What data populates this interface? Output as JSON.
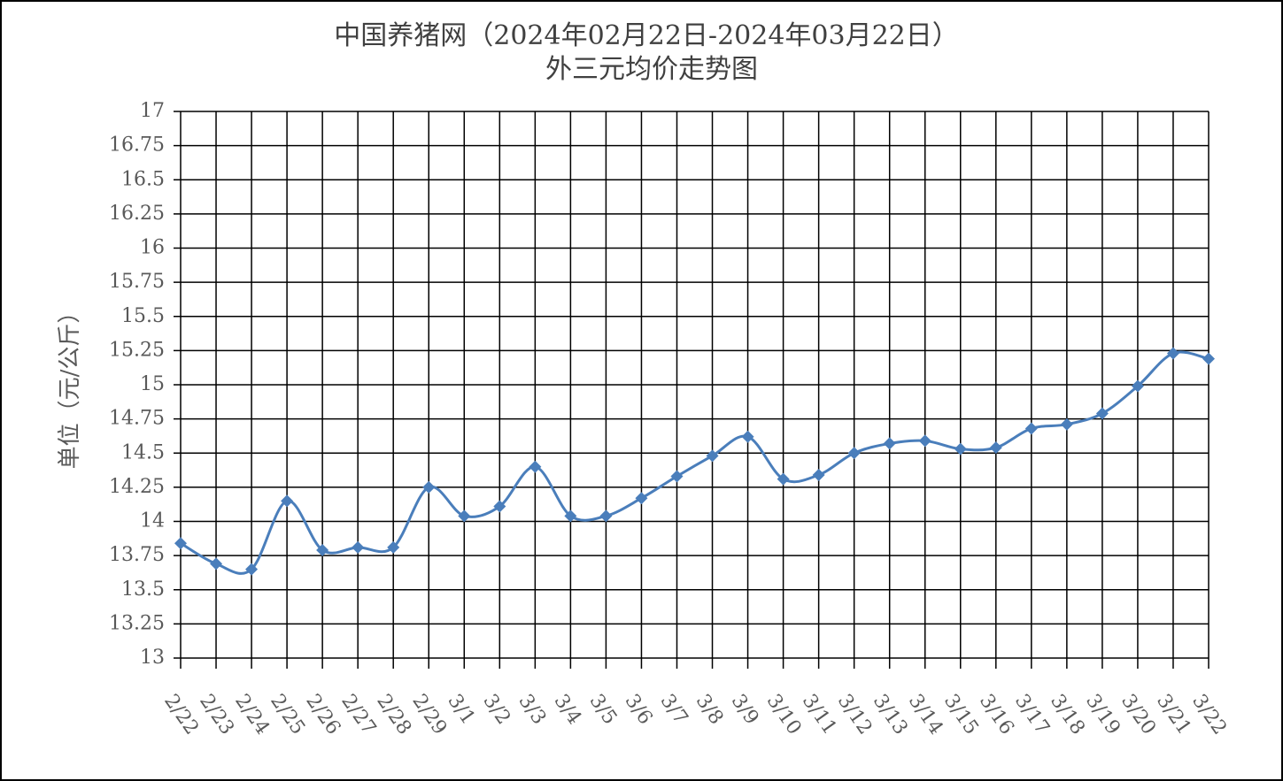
{
  "chart_data": {
    "type": "line",
    "title": "中国养猪网（2024年02月22日-2024年03月22日）",
    "subtitle": "外三元均价走势图",
    "y_label": "单位（元/公斤）",
    "categories": [
      "2/22",
      "2/23",
      "2/24",
      "2/25",
      "2/26",
      "2/27",
      "2/28",
      "2/29",
      "3/1",
      "3/2",
      "3/3",
      "3/4",
      "3/5",
      "3/6",
      "3/7",
      "3/8",
      "3/9",
      "3/10",
      "3/11",
      "3/12",
      "3/13",
      "3/14",
      "3/15",
      "3/16",
      "3/17",
      "3/18",
      "3/19",
      "3/20",
      "3/21",
      "3/22"
    ],
    "series": [
      {
        "name": "外三元均价",
        "color": "#4a7ebb",
        "values": [
          13.84,
          13.69,
          13.65,
          14.15,
          13.79,
          13.81,
          13.81,
          14.25,
          14.04,
          14.11,
          14.4,
          14.04,
          14.04,
          14.17,
          14.33,
          14.48,
          14.62,
          14.31,
          14.34,
          14.5,
          14.57,
          14.59,
          14.53,
          14.54,
          14.68,
          14.71,
          14.79,
          14.99,
          15.23,
          15.19
        ]
      }
    ],
    "ylim": [
      13,
      17
    ],
    "yticks": [
      13,
      13.25,
      13.5,
      13.75,
      14,
      14.25,
      14.5,
      14.75,
      15,
      15.25,
      15.5,
      15.75,
      16,
      16.25,
      16.5,
      16.75,
      17
    ],
    "grid": true
  }
}
